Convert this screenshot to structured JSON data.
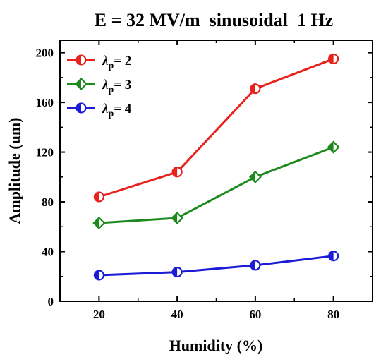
{
  "chart_data": {
    "type": "line",
    "title": "E = 32 MV/m  sinusoidal  1 Hz",
    "xlabel": "Humidity (%)",
    "ylabel": "Amplitude (um)",
    "x": [
      20,
      40,
      60,
      80
    ],
    "xlim": [
      10,
      90
    ],
    "ylim": [
      0,
      210
    ],
    "xticks": [
      20,
      40,
      60,
      80
    ],
    "yticks": [
      0,
      40,
      80,
      120,
      160,
      200
    ],
    "grid": false,
    "legend_position": "top-left",
    "series": [
      {
        "name": "λp = 2",
        "legend_symbol": "λ",
        "legend_sub": "p",
        "legend_value": "= 2",
        "color": "#e8211c",
        "marker": "circle-half",
        "values": [
          84,
          104,
          171,
          195
        ]
      },
      {
        "name": "λp = 3",
        "legend_symbol": "λ",
        "legend_sub": "p",
        "legend_value": "= 3",
        "color": "#1e8a1e",
        "marker": "diamond-half",
        "values": [
          63,
          67,
          100,
          124
        ]
      },
      {
        "name": "λp = 4",
        "legend_symbol": "λ",
        "legend_sub": "p",
        "legend_value": "= 4",
        "color": "#1c1cd6",
        "marker": "circle-half",
        "values": [
          21,
          23.5,
          29,
          36.5
        ]
      }
    ]
  }
}
